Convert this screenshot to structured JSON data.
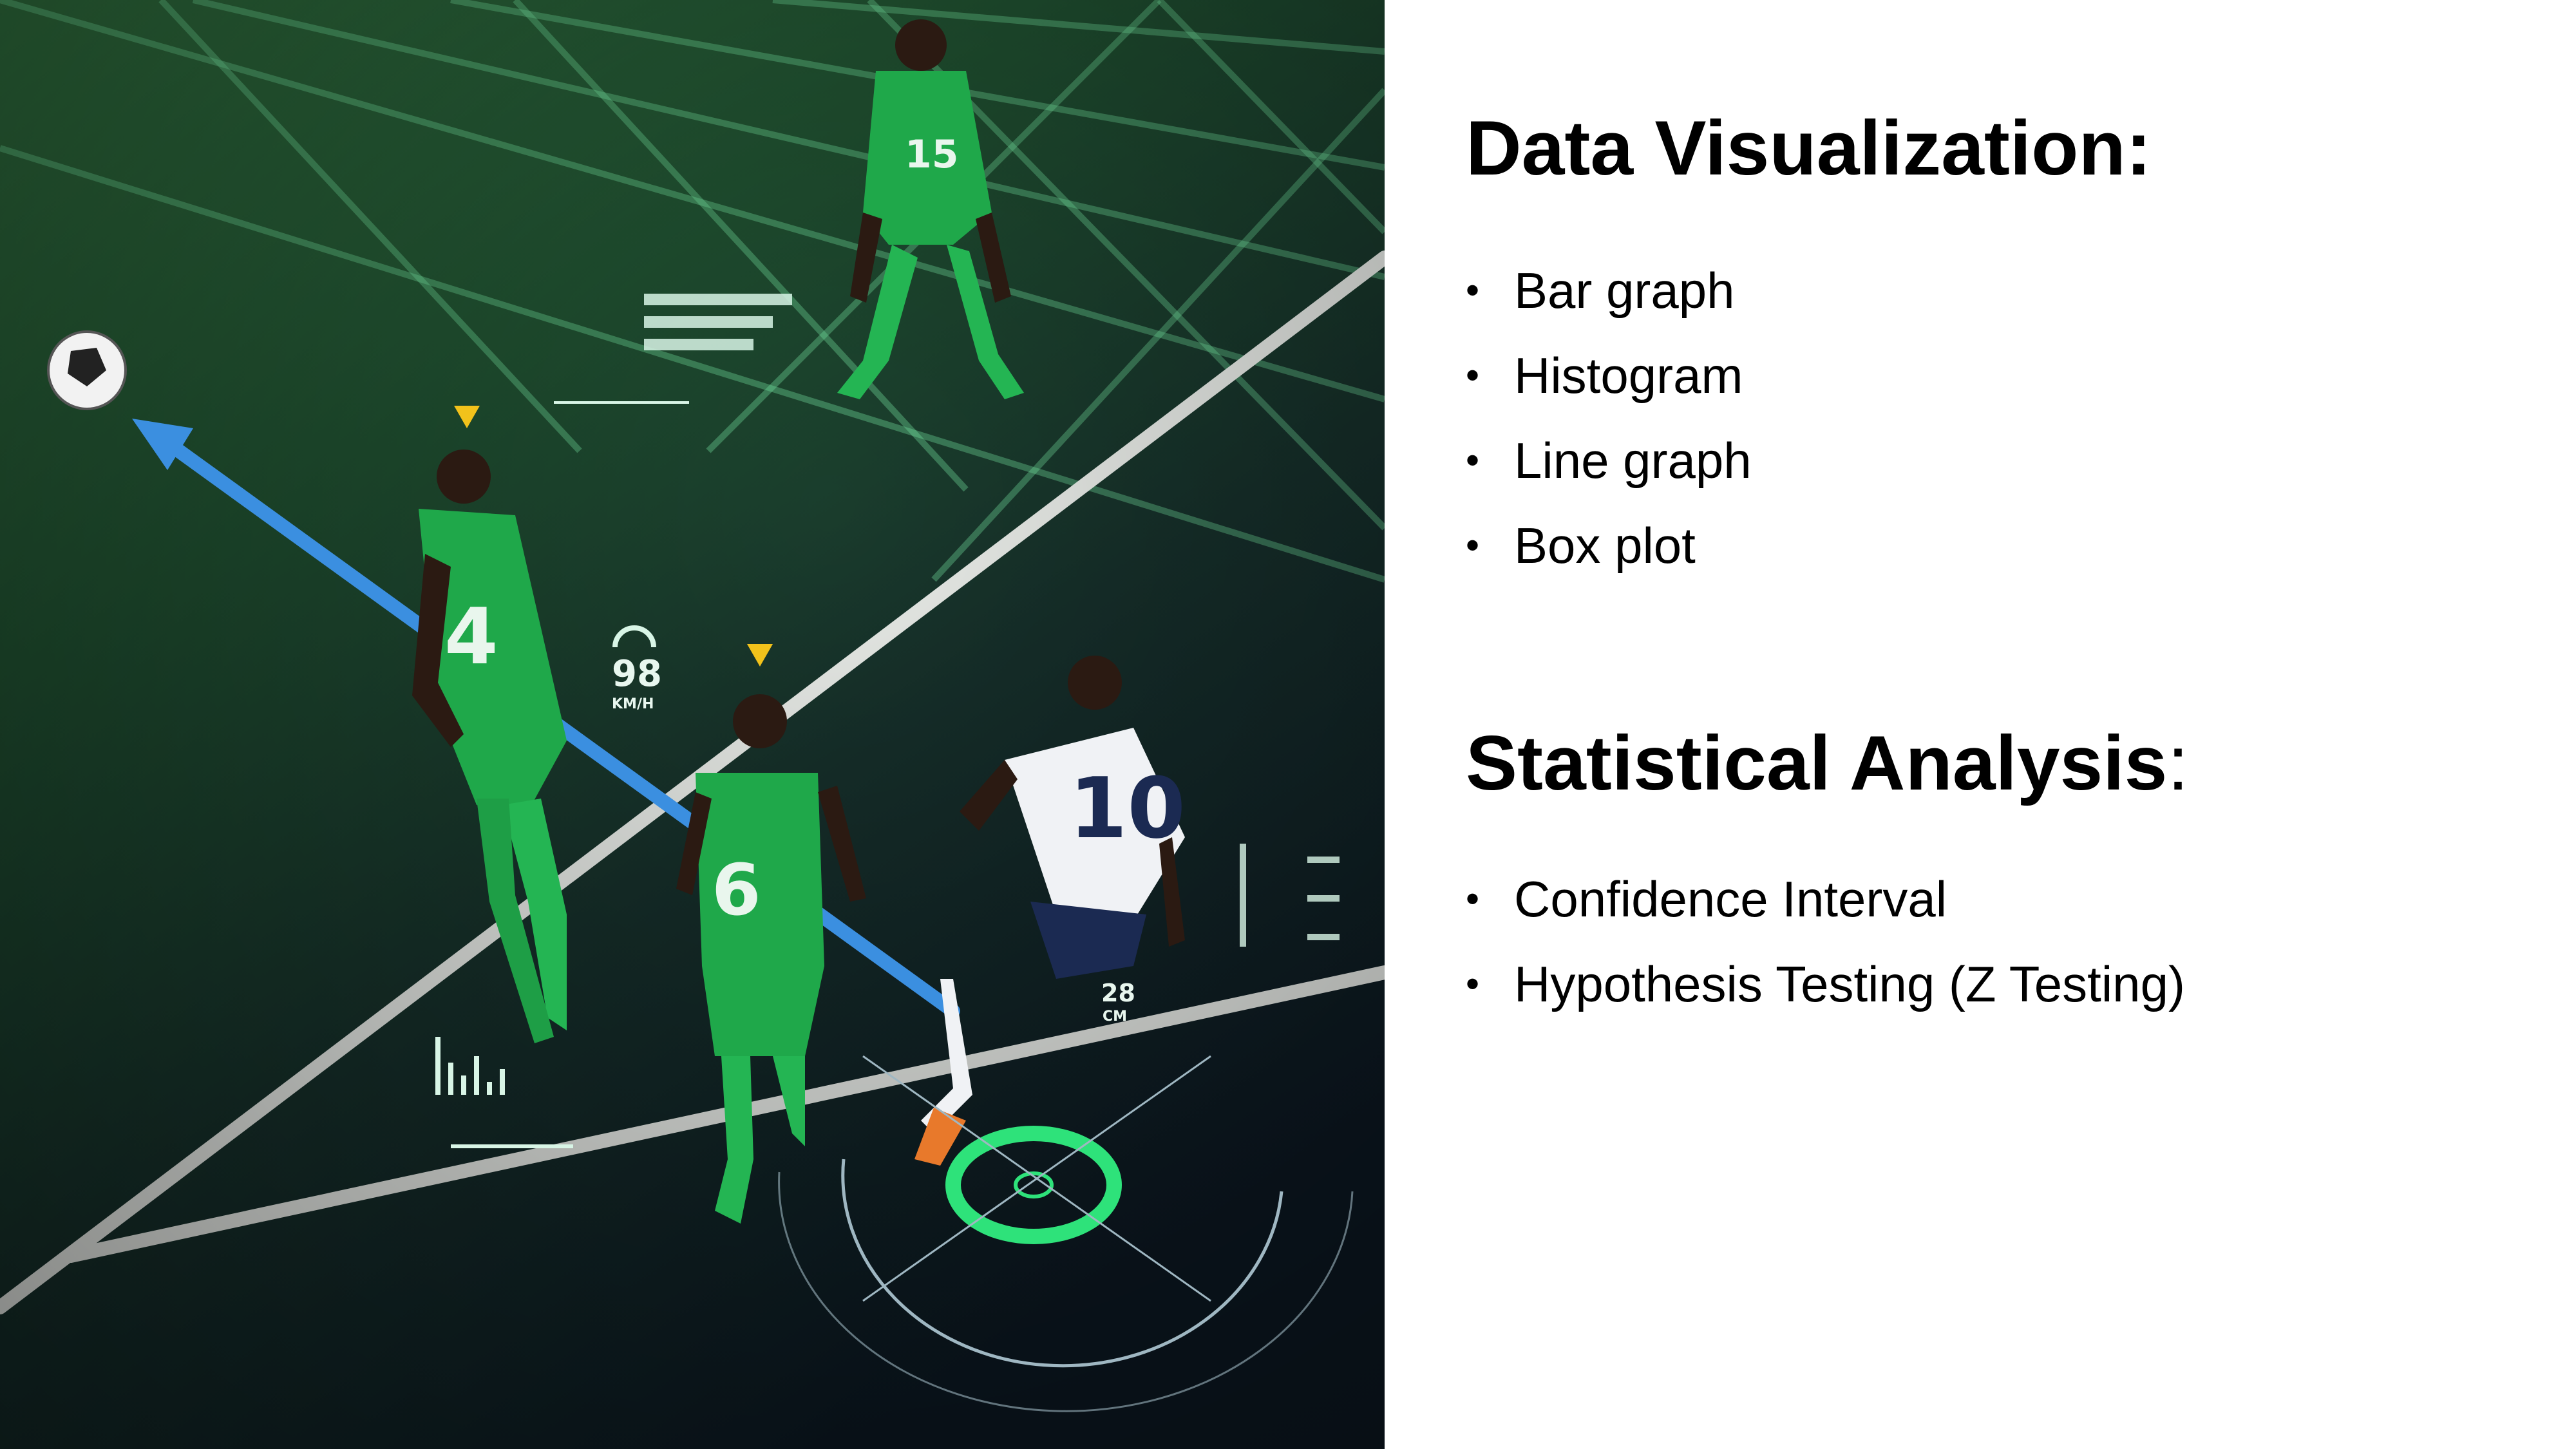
{
  "photo": {
    "description_icon": "soccer-analytics-photo",
    "overlay": {
      "speed_value": "98",
      "speed_unit": "KM/H",
      "height_value": "28",
      "height_unit": "CM"
    },
    "players": [
      {
        "number": "15",
        "kit": "green"
      },
      {
        "number": "4",
        "kit": "green"
      },
      {
        "number": "6",
        "kit": "green"
      },
      {
        "number": "10",
        "kit": "white"
      }
    ],
    "colors": {
      "pitch": "#1e4a2c",
      "green_kit": "#1fa84a",
      "tracking_arrow": "#3b8fe0",
      "hud": "#5de0a0"
    }
  },
  "sections": [
    {
      "title": "Data Visualization",
      "title_suffix": ":",
      "items": [
        "Bar graph",
        "Histogram",
        "Line graph",
        "Box plot"
      ]
    },
    {
      "title": "Statistical Analysis",
      "title_suffix": ":",
      "items": [
        "Confidence Interval",
        "Hypothesis Testing (Z Testing)"
      ]
    }
  ]
}
